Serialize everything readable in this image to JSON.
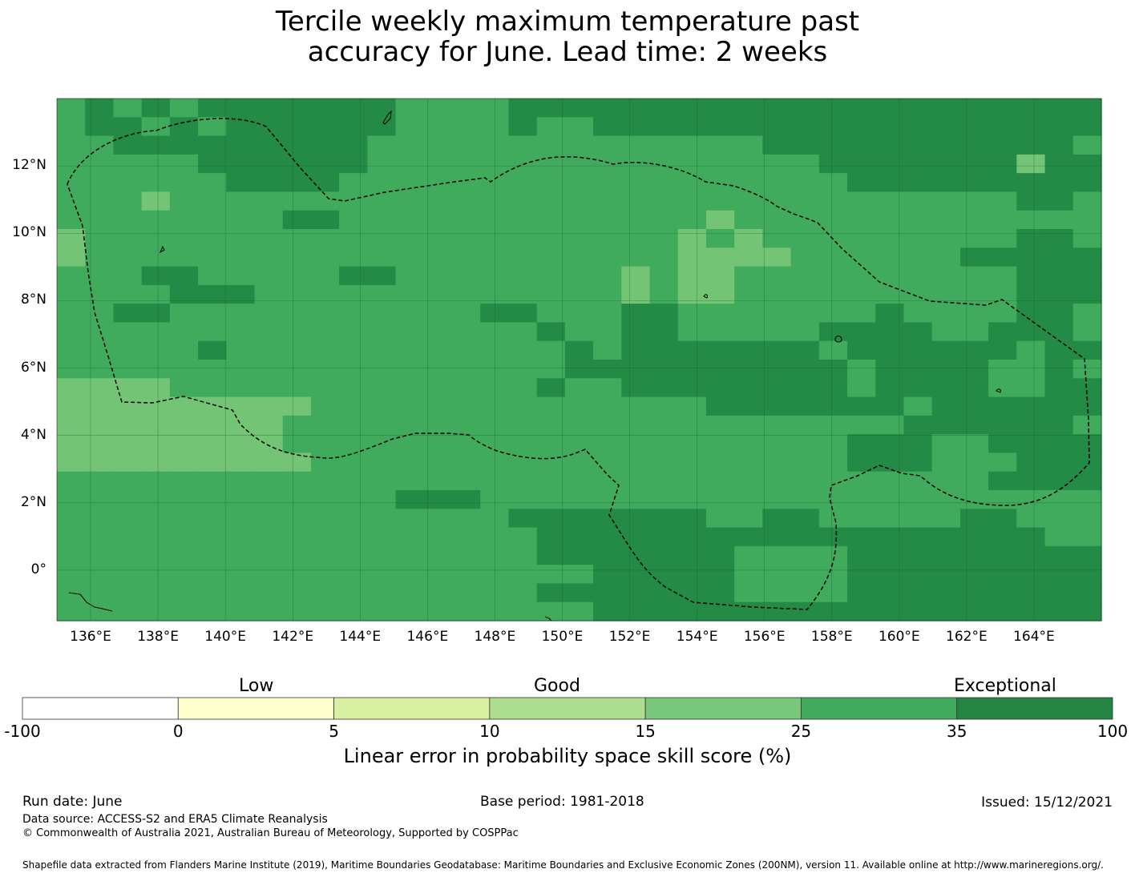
{
  "title_line1": "Tercile weekly maximum temperature past",
  "title_line2": "accuracy for June. Lead time: 2 weeks",
  "map": {
    "lon_range": [
      135,
      166
    ],
    "lat_range": [
      -1.5,
      14
    ],
    "lon_ticks": [
      "136°E",
      "138°E",
      "140°E",
      "142°E",
      "144°E",
      "146°E",
      "148°E",
      "150°E",
      "152°E",
      "154°E",
      "156°E",
      "158°E",
      "160°E",
      "162°E",
      "164°E"
    ],
    "lat_ticks": [
      "12°N",
      "10°N",
      "8°N",
      "6°N",
      "4°N",
      "2°N",
      "0°"
    ],
    "cell_colors": {
      "a": "#238b45",
      "b": "#41ab5d",
      "c": "#74c476"
    }
  },
  "colorbar": {
    "categories": [
      "Low",
      "Good",
      "Exceptional"
    ],
    "boundaries": [
      "-100",
      "0",
      "5",
      "10",
      "15",
      "25",
      "35",
      "100"
    ],
    "colors": [
      "#ffffff",
      "#ffffcc",
      "#d9f0a3",
      "#addd8e",
      "#78c679",
      "#41ab5d",
      "#238443"
    ],
    "label": "Linear error in probability space skill score (%)"
  },
  "footer": {
    "run_date": "Run date: June",
    "base_period": "Base period: 1981-2018",
    "issued": "Issued: 15/12/2021",
    "data_source": "Data source: ACCESS-S2 and ERA5 Climate Reanalysis",
    "copyright": "© Commonwealth of Australia 2021, Australian Bureau of Meteorology, Supported by COSPPac",
    "shapefile": "Shapefile data extracted from Flanders Marine Institute (2019), Maritime Boundaries Geodatabase: Maritime Boundaries and Exclusive Economic Zones (200NM), version 11. Available online at http://www.marineregions.org/."
  }
}
